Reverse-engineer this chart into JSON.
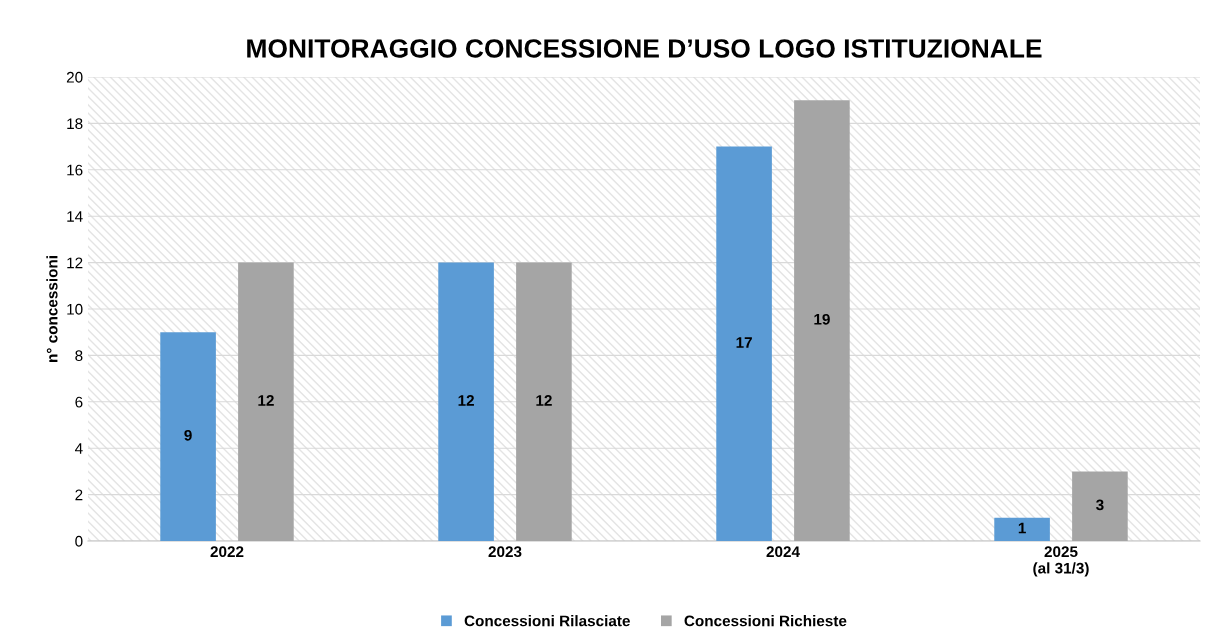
{
  "chart_data": {
    "type": "bar",
    "title": "MONITORAGGIO CONCESSIONE D’USO LOGO ISTITUZIONALE",
    "ylabel": "n° concessioni",
    "categories": [
      "2022",
      "2023",
      "2024",
      "2025\n(al 31/3)"
    ],
    "series": [
      {
        "name": "Concessioni Rilasciate",
        "color": "#5b9bd5",
        "values": [
          9,
          12,
          17,
          1
        ]
      },
      {
        "name": "Concessioni Richieste",
        "color": "#a5a5a5",
        "values": [
          12,
          12,
          19,
          3
        ]
      }
    ],
    "ylim": [
      0,
      20
    ],
    "yticks": [
      0,
      2,
      4,
      6,
      8,
      10,
      12,
      14,
      16,
      18,
      20
    ],
    "grid": "y",
    "legend": "bottom",
    "data_labels": true
  }
}
